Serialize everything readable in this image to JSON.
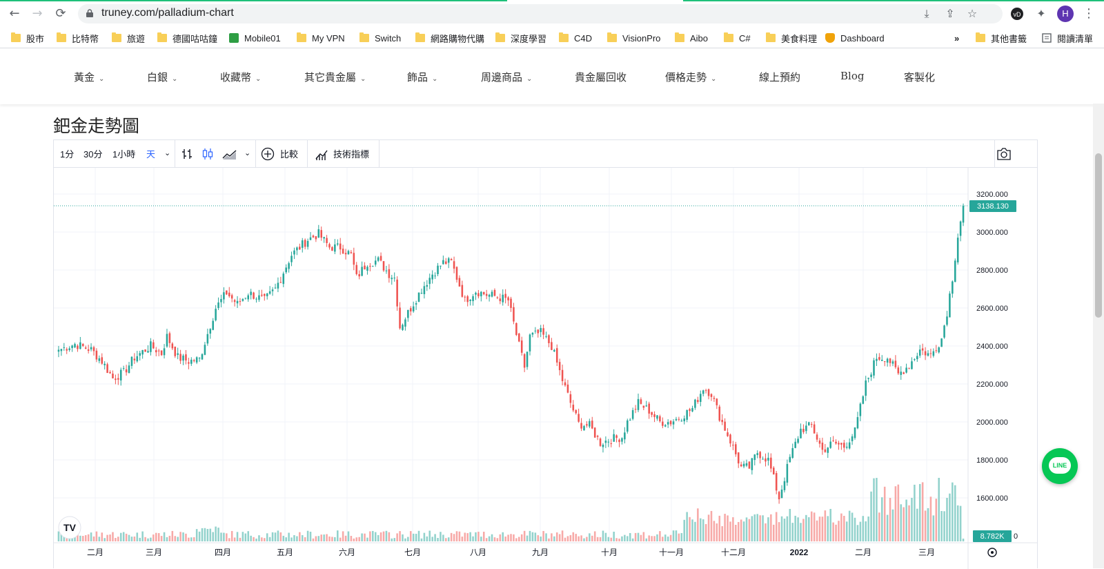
{
  "browser": {
    "url": "truney.com/palladium-chart",
    "profile_initial": "H"
  },
  "bookmarks": {
    "items": [
      {
        "label": "股市",
        "icon": "folder-icon"
      },
      {
        "label": "比特幣",
        "icon": "folder-icon"
      },
      {
        "label": "旅遊",
        "icon": "folder-icon"
      },
      {
        "label": "德國咕咕鐘",
        "icon": "folder-icon"
      },
      {
        "label": "Mobile01",
        "icon": "mobile01-icon"
      },
      {
        "label": "My VPN",
        "icon": "folder-icon"
      },
      {
        "label": "Switch",
        "icon": "folder-icon"
      },
      {
        "label": "網路購物代購",
        "icon": "folder-icon"
      },
      {
        "label": "深度學習",
        "icon": "folder-icon"
      },
      {
        "label": "C4D",
        "icon": "folder-icon"
      },
      {
        "label": "VisionPro",
        "icon": "folder-icon"
      },
      {
        "label": "Aibo",
        "icon": "folder-icon"
      },
      {
        "label": "C#",
        "icon": "folder-icon"
      },
      {
        "label": "美食料理",
        "icon": "folder-icon"
      },
      {
        "label": "Dashboard",
        "icon": "dashboard-icon"
      }
    ],
    "overflow": "»",
    "other": "其他書籤",
    "reading_list": "閱讀清單"
  },
  "site_nav": {
    "items": [
      {
        "label": "黃金",
        "dropdown": true
      },
      {
        "label": "白銀",
        "dropdown": true
      },
      {
        "label": "收藏幣",
        "dropdown": true
      },
      {
        "label": "其它貴金屬",
        "dropdown": true
      },
      {
        "label": "飾品",
        "dropdown": true
      },
      {
        "label": "周邊商品",
        "dropdown": true
      },
      {
        "label": "貴金屬回收",
        "dropdown": false
      },
      {
        "label": "價格走勢",
        "dropdown": true
      },
      {
        "label": "線上預約",
        "dropdown": false
      },
      {
        "label": "Blog",
        "dropdown": false
      },
      {
        "label": "客製化",
        "dropdown": false
      }
    ]
  },
  "page": {
    "title": "鈀金走勢圖"
  },
  "toolbar": {
    "intervals": [
      "1分",
      "30分",
      "1小時",
      "天"
    ],
    "active_interval": "天",
    "compare_label": "比較",
    "indicators_label": "技術指標"
  },
  "line_button": {
    "label": "LINE"
  },
  "chart_data": {
    "type": "candlestick",
    "price_axis": {
      "ticks": [
        "3200.000",
        "3000.000",
        "2800.000",
        "2600.000",
        "2400.000",
        "2200.000",
        "2000.000",
        "1800.000",
        "1600.000"
      ],
      "range": [
        1560,
        3260
      ],
      "current_price_label": "3138.130",
      "volume_label": "8.782K"
    },
    "time_axis": {
      "labels": [
        "二月",
        "三月",
        "四月",
        "五月",
        "六月",
        "七月",
        "八月",
        "九月",
        "十月",
        "十一月",
        "十二月",
        "2022",
        "二月",
        "三月"
      ]
    },
    "colors": {
      "up": "#26a69a",
      "down": "#ef5350",
      "up_volume": "#92d2cc",
      "down_volume": "#f7a9a7",
      "last_price": "#26a69a"
    },
    "close_path": [
      [
        0,
        2380
      ],
      [
        6,
        2410
      ],
      [
        12,
        2380
      ],
      [
        16,
        2320
      ],
      [
        20,
        2230
      ],
      [
        24,
        2260
      ],
      [
        28,
        2340
      ],
      [
        34,
        2400
      ],
      [
        38,
        2360
      ],
      [
        40,
        2450
      ],
      [
        44,
        2340
      ],
      [
        48,
        2320
      ],
      [
        52,
        2330
      ],
      [
        58,
        2600
      ],
      [
        62,
        2680
      ],
      [
        66,
        2620
      ],
      [
        70,
        2680
      ],
      [
        76,
        2640
      ],
      [
        80,
        2700
      ],
      [
        86,
        2880
      ],
      [
        92,
        2960
      ],
      [
        96,
        2990
      ],
      [
        100,
        2920
      ],
      [
        104,
        2920
      ],
      [
        108,
        2880
      ],
      [
        110,
        2760
      ],
      [
        114,
        2840
      ],
      [
        118,
        2850
      ],
      [
        122,
        2780
      ],
      [
        124,
        2760
      ],
      [
        126,
        2500
      ],
      [
        130,
        2600
      ],
      [
        134,
        2700
      ],
      [
        138,
        2780
      ],
      [
        142,
        2840
      ],
      [
        145,
        2840
      ],
      [
        148,
        2720
      ],
      [
        150,
        2640
      ],
      [
        154,
        2690
      ],
      [
        158,
        2670
      ],
      [
        162,
        2660
      ],
      [
        166,
        2640
      ],
      [
        170,
        2400
      ],
      [
        172,
        2290
      ],
      [
        174,
        2450
      ],
      [
        178,
        2470
      ],
      [
        182,
        2400
      ],
      [
        186,
        2220
      ],
      [
        189,
        2100
      ],
      [
        192,
        1990
      ],
      [
        196,
        1980
      ],
      [
        200,
        1890
      ],
      [
        204,
        1910
      ],
      [
        208,
        1920
      ],
      [
        210,
        2000
      ],
      [
        214,
        2100
      ],
      [
        218,
        2060
      ],
      [
        222,
        2000
      ],
      [
        226,
        2000
      ],
      [
        230,
        2030
      ],
      [
        234,
        2070
      ],
      [
        238,
        2180
      ],
      [
        241,
        2150
      ],
      [
        244,
        2030
      ],
      [
        248,
        1900
      ],
      [
        252,
        1760
      ],
      [
        255,
        1760
      ],
      [
        258,
        1840
      ],
      [
        262,
        1800
      ],
      [
        264,
        1700
      ],
      [
        266,
        1600
      ],
      [
        270,
        1810
      ],
      [
        274,
        1960
      ],
      [
        278,
        1980
      ],
      [
        282,
        1850
      ],
      [
        286,
        1890
      ],
      [
        290,
        1870
      ],
      [
        294,
        1950
      ],
      [
        298,
        2200
      ],
      [
        302,
        2340
      ],
      [
        306,
        2340
      ],
      [
        310,
        2250
      ],
      [
        314,
        2300
      ],
      [
        318,
        2380
      ],
      [
        322,
        2350
      ],
      [
        326,
        2440
      ],
      [
        328,
        2580
      ],
      [
        330,
        2760
      ],
      [
        332,
        2980
      ],
      [
        334,
        3138
      ]
    ]
  }
}
